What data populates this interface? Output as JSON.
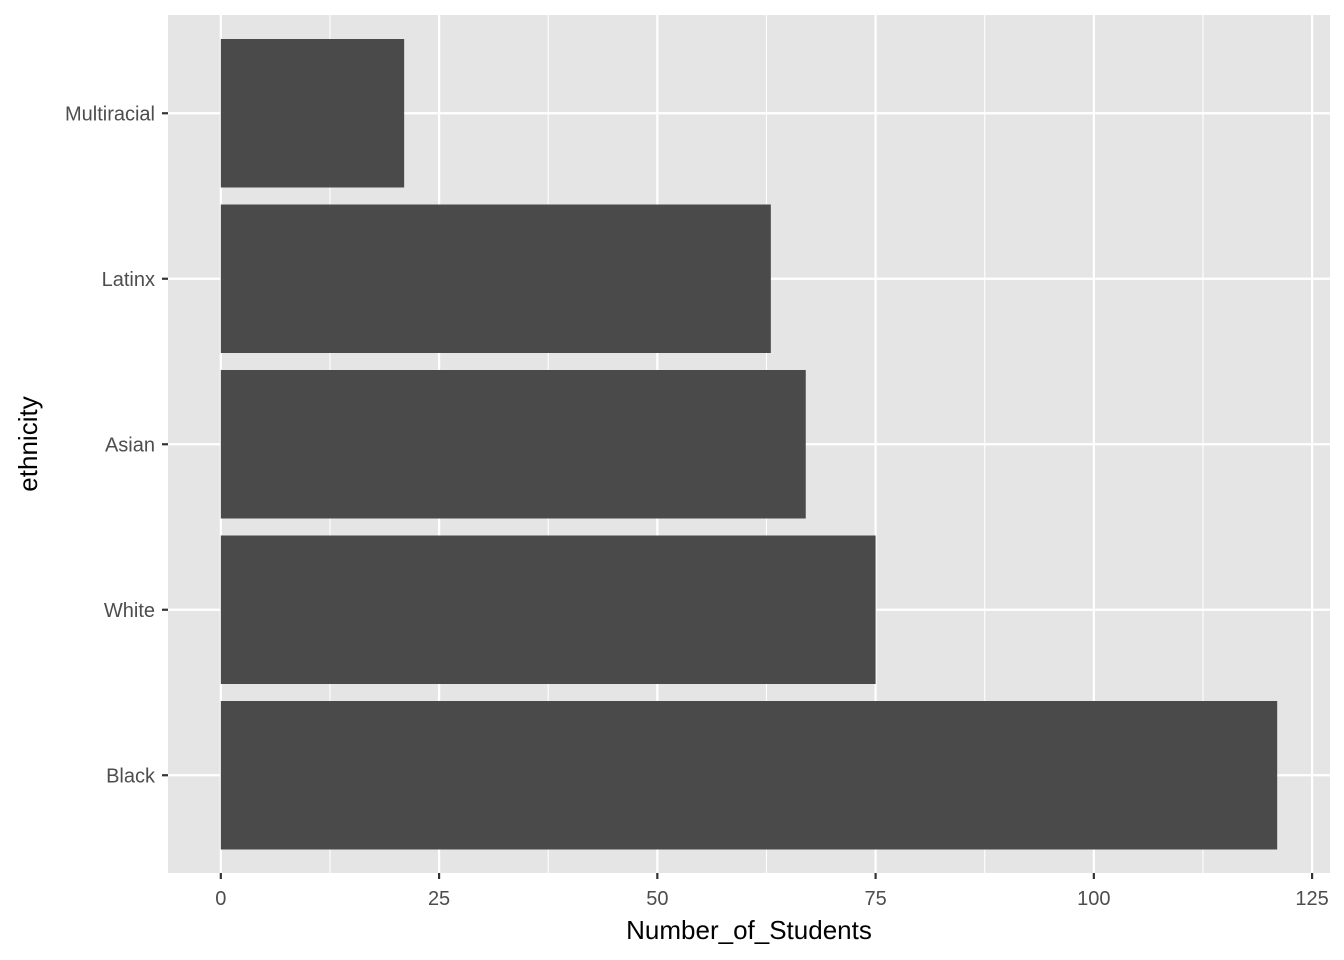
{
  "chart_data": {
    "type": "bar",
    "orientation": "horizontal",
    "categories": [
      "Black",
      "White",
      "Asian",
      "Latinx",
      "Multiracial"
    ],
    "values": [
      121,
      75,
      67,
      63,
      21
    ],
    "xlabel": "Number_of_Students",
    "ylabel": "ethnicity",
    "xlim": [
      -6.05,
      127.05
    ],
    "xticks": [
      0,
      25,
      50,
      75,
      100,
      125
    ],
    "grid": true,
    "legend": "none",
    "colors": {
      "panel": "#e5e5e5",
      "grid": "#ffffff",
      "bar": "#4a4a4a",
      "tick_text": "#4d4d4d",
      "title_text": "#000000"
    }
  }
}
